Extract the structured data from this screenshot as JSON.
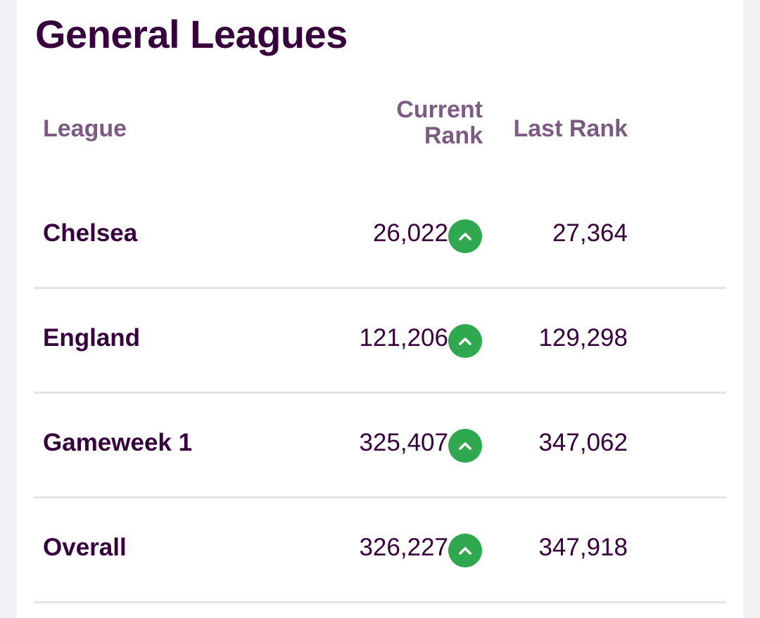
{
  "section": {
    "title": "General Leagues"
  },
  "table": {
    "headers": {
      "league": "League",
      "current_rank": "Current Rank",
      "last_rank": "Last Rank"
    },
    "rows": [
      {
        "league": "Chelsea",
        "current_rank": "26,022",
        "movement": "up",
        "last_rank": "27,364"
      },
      {
        "league": "England",
        "current_rank": "121,206",
        "movement": "up",
        "last_rank": "129,298"
      },
      {
        "league": "Gameweek 1",
        "current_rank": "325,407",
        "movement": "up",
        "last_rank": "347,062"
      },
      {
        "league": "Overall",
        "current_rank": "326,227",
        "movement": "up",
        "last_rank": "347,918"
      }
    ]
  },
  "colors": {
    "primary_text": "#37003c",
    "header_text": "#7c5b82",
    "movement_up": "#2fa84f",
    "divider": "#e6e3e8"
  },
  "icons": {
    "movement_up": "chevron-up-icon"
  }
}
